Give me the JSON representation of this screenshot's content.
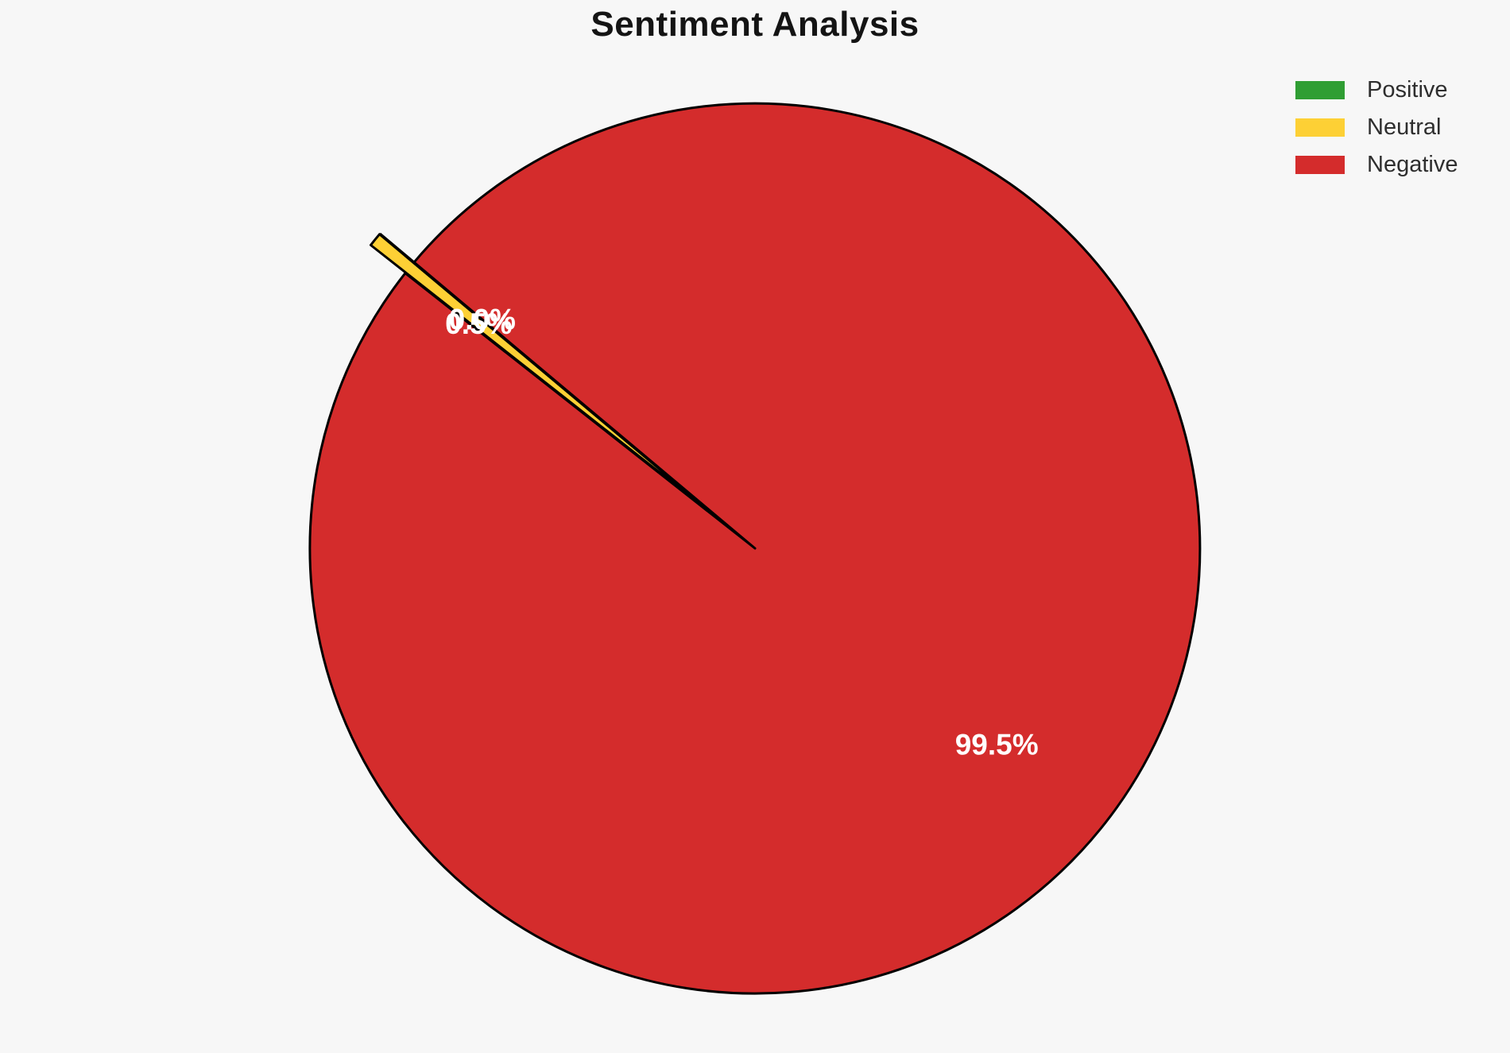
{
  "chart_data": {
    "type": "pie",
    "title": "Sentiment Analysis",
    "background_color": "#f7f7f7",
    "edge_color": "#000000",
    "edge_width": 3,
    "pct_text_color": "#ffffff",
    "startangle": 140,
    "counterclock": true,
    "pctdistance": 0.7,
    "legend_position": "upper-right",
    "grid": false,
    "slices": [
      {
        "label": "Positive",
        "value": 0.0,
        "pct_label": "0.0%",
        "color": "#2f9e33",
        "explode": 0.1
      },
      {
        "label": "Neutral",
        "value": 0.5,
        "pct_label": "0.5%",
        "color": "#fdd035",
        "explode": 0.1
      },
      {
        "label": "Negative",
        "value": 99.5,
        "pct_label": "99.5%",
        "color": "#d42c2c",
        "explode": 0.0
      }
    ]
  }
}
